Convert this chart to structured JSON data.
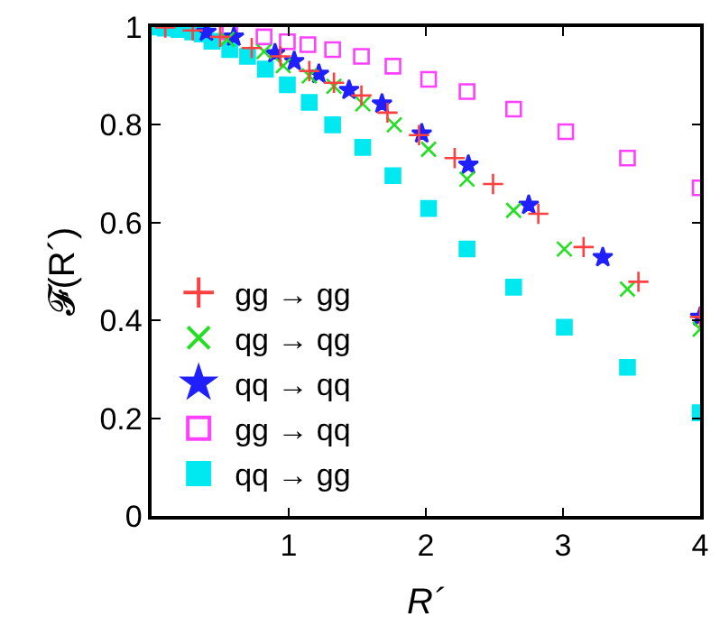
{
  "chart_data": {
    "type": "scatter",
    "xlabel": "R´",
    "ylabel": "𝓕(R´)",
    "xlim": [
      0,
      4
    ],
    "xticks": [
      1,
      2,
      3,
      4
    ],
    "ylim": [
      0,
      1
    ],
    "yticks": [
      0,
      0.2,
      0.4,
      0.6,
      0.8,
      1
    ],
    "legend": "bottom left",
    "series": [
      {
        "name": "gg → gg",
        "color": "#ff4040",
        "marker": "cross",
        "x": [
          0.1,
          0.3,
          0.5,
          0.73,
          0.94,
          1.15,
          1.33,
          1.53,
          1.72,
          1.95,
          2.21,
          2.49,
          2.82,
          3.15,
          3.55,
          4.0
        ],
        "values": [
          0.999,
          0.993,
          0.98,
          0.957,
          0.94,
          0.91,
          0.886,
          0.86,
          0.825,
          0.779,
          0.732,
          0.679,
          0.618,
          0.55,
          0.479,
          0.407
        ]
      },
      {
        "name": "qg → qg",
        "color": "#20e020",
        "marker": "x",
        "x": [
          0.55,
          0.82,
          0.96,
          1.15,
          1.33,
          1.54,
          1.77,
          2.02,
          2.3,
          2.64,
          3.01,
          3.47,
          4.0
        ],
        "values": [
          0.975,
          0.95,
          0.921,
          0.9,
          0.879,
          0.843,
          0.8,
          0.75,
          0.689,
          0.625,
          0.546,
          0.464,
          0.382
        ]
      },
      {
        "name": "qq → qq",
        "color": "#2020ff",
        "marker": "star",
        "x": [
          0.4,
          0.6,
          0.9,
          1.04,
          1.22,
          1.44,
          1.68,
          1.97,
          2.31,
          2.75,
          3.29,
          4.0
        ],
        "values": [
          0.99,
          0.98,
          0.946,
          0.93,
          0.904,
          0.871,
          0.843,
          0.782,
          0.718,
          0.636,
          0.529,
          0.407
        ]
      },
      {
        "name": "gg → qq",
        "color": "#ff40ff",
        "marker": "square-open",
        "x": [
          0.57,
          0.82,
          0.99,
          1.14,
          1.32,
          1.53,
          1.76,
          2.02,
          2.3,
          2.64,
          3.02,
          3.47,
          4.0
        ],
        "values": [
          0.99,
          0.98,
          0.97,
          0.964,
          0.954,
          0.94,
          0.92,
          0.893,
          0.868,
          0.832,
          0.786,
          0.732,
          0.671
        ]
      },
      {
        "name": "qq → gg",
        "color": "#00e8f0",
        "marker": "square",
        "x": [
          0.0,
          0.1,
          0.2,
          0.3,
          0.37,
          0.44,
          0.57,
          0.7,
          0.83,
          0.99,
          1.15,
          1.32,
          1.54,
          1.76,
          2.02,
          2.3,
          2.64,
          3.01,
          3.47,
          4.0
        ],
        "values": [
          1.0,
          0.998,
          0.995,
          0.99,
          0.986,
          0.971,
          0.954,
          0.94,
          0.914,
          0.882,
          0.846,
          0.8,
          0.754,
          0.696,
          0.629,
          0.546,
          0.468,
          0.386,
          0.304,
          0.211
        ]
      }
    ]
  }
}
